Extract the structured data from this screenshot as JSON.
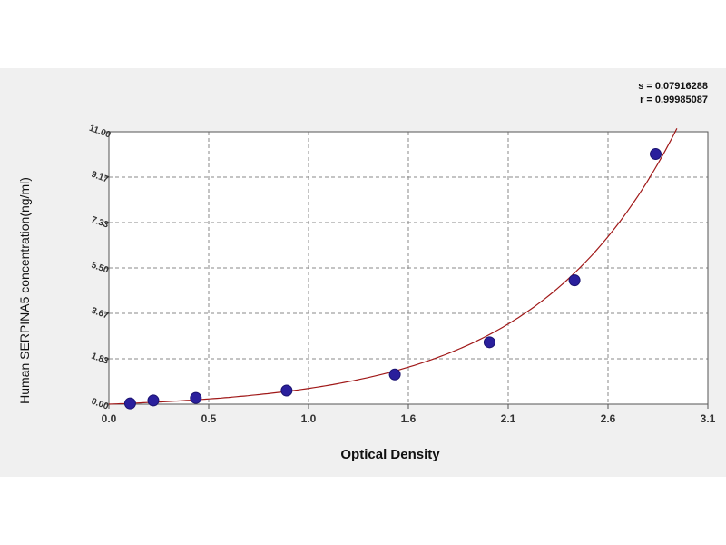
{
  "chart_data": {
    "type": "scatter",
    "title": "",
    "xlabel": "Optical Density",
    "ylabel": "Human SERPINA5 concentration(ng/ml)",
    "x_ticks": [
      "0.0",
      "0.5",
      "1.0",
      "1.6",
      "2.1",
      "2.6",
      "3.1"
    ],
    "y_ticks": [
      "0.00",
      "1.83",
      "3.67",
      "5.50",
      "7.33",
      "9.17",
      "11.00"
    ],
    "xlim": [
      0,
      3.1
    ],
    "ylim": [
      0,
      11
    ],
    "grid": true,
    "points": [
      {
        "x": 0.11,
        "y": 0.03
      },
      {
        "x": 0.23,
        "y": 0.15
      },
      {
        "x": 0.45,
        "y": 0.25
      },
      {
        "x": 0.92,
        "y": 0.55
      },
      {
        "x": 1.48,
        "y": 1.2
      },
      {
        "x": 1.97,
        "y": 2.5
      },
      {
        "x": 2.41,
        "y": 5.0
      },
      {
        "x": 2.83,
        "y": 10.1
      }
    ],
    "fit_curve": true,
    "colors": {
      "points": "#2a1f9c",
      "curve": "#a01818",
      "grid": "#8a8a8a"
    },
    "stats": {
      "s": "s = 0.07916288",
      "r": "r = 0.99985087"
    }
  }
}
